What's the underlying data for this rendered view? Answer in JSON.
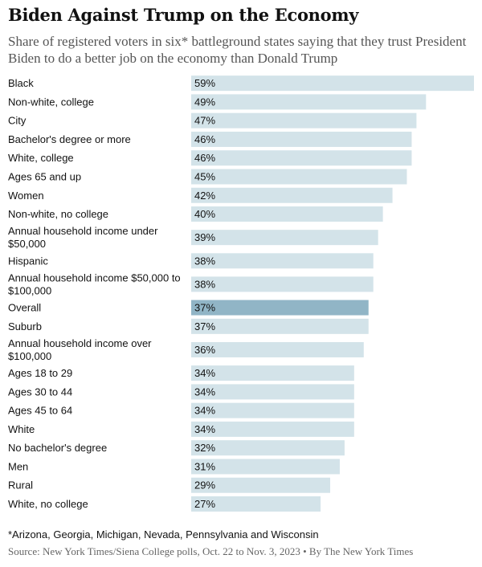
{
  "header": {
    "title": "Biden Against Trump on the Economy",
    "subtitle": "Share of registered voters in six* battleground states saying that they trust President Biden to do a better job on the economy than Donald Trump"
  },
  "chart_data": {
    "type": "bar",
    "orientation": "horizontal",
    "categories": [
      "Black",
      "Non-white, college",
      "City",
      "Bachelor's degree or more",
      "White, college",
      "Ages 65 and up",
      "Women",
      "Non-white, no college",
      "Annual household income under $50,000",
      "Hispanic",
      "Annual household income $50,000 to $100,000",
      "Overall",
      "Suburb",
      "Annual household income over $100,000",
      "Ages 18 to 29",
      "Ages 30 to 44",
      "Ages 45 to 64",
      "White",
      "No bachelor's degree",
      "Men",
      "Rural",
      "White, no college"
    ],
    "values": [
      59,
      49,
      47,
      46,
      46,
      45,
      42,
      40,
      39,
      38,
      38,
      37,
      37,
      36,
      34,
      34,
      34,
      34,
      32,
      31,
      29,
      27
    ],
    "value_labels": [
      "59%",
      "49%",
      "47%",
      "46%",
      "46%",
      "45%",
      "42%",
      "40%",
      "39%",
      "38%",
      "38%",
      "37%",
      "37%",
      "36%",
      "34%",
      "34%",
      "34%",
      "34%",
      "32%",
      "31%",
      "29%",
      "27%"
    ],
    "highlight": "Overall",
    "colors": {
      "bar": "#d3e3e9",
      "highlight": "#91b5c6",
      "text": "#121212"
    },
    "grid": false,
    "legend": "none"
  },
  "footer": {
    "footnote": "*Arizona, Georgia, Michigan, Nevada, Pennsylvania and Wisconsin",
    "source": "Source: New York Times/Siena College polls, Oct. 22 to Nov. 3, 2023 • By The New York Times"
  }
}
